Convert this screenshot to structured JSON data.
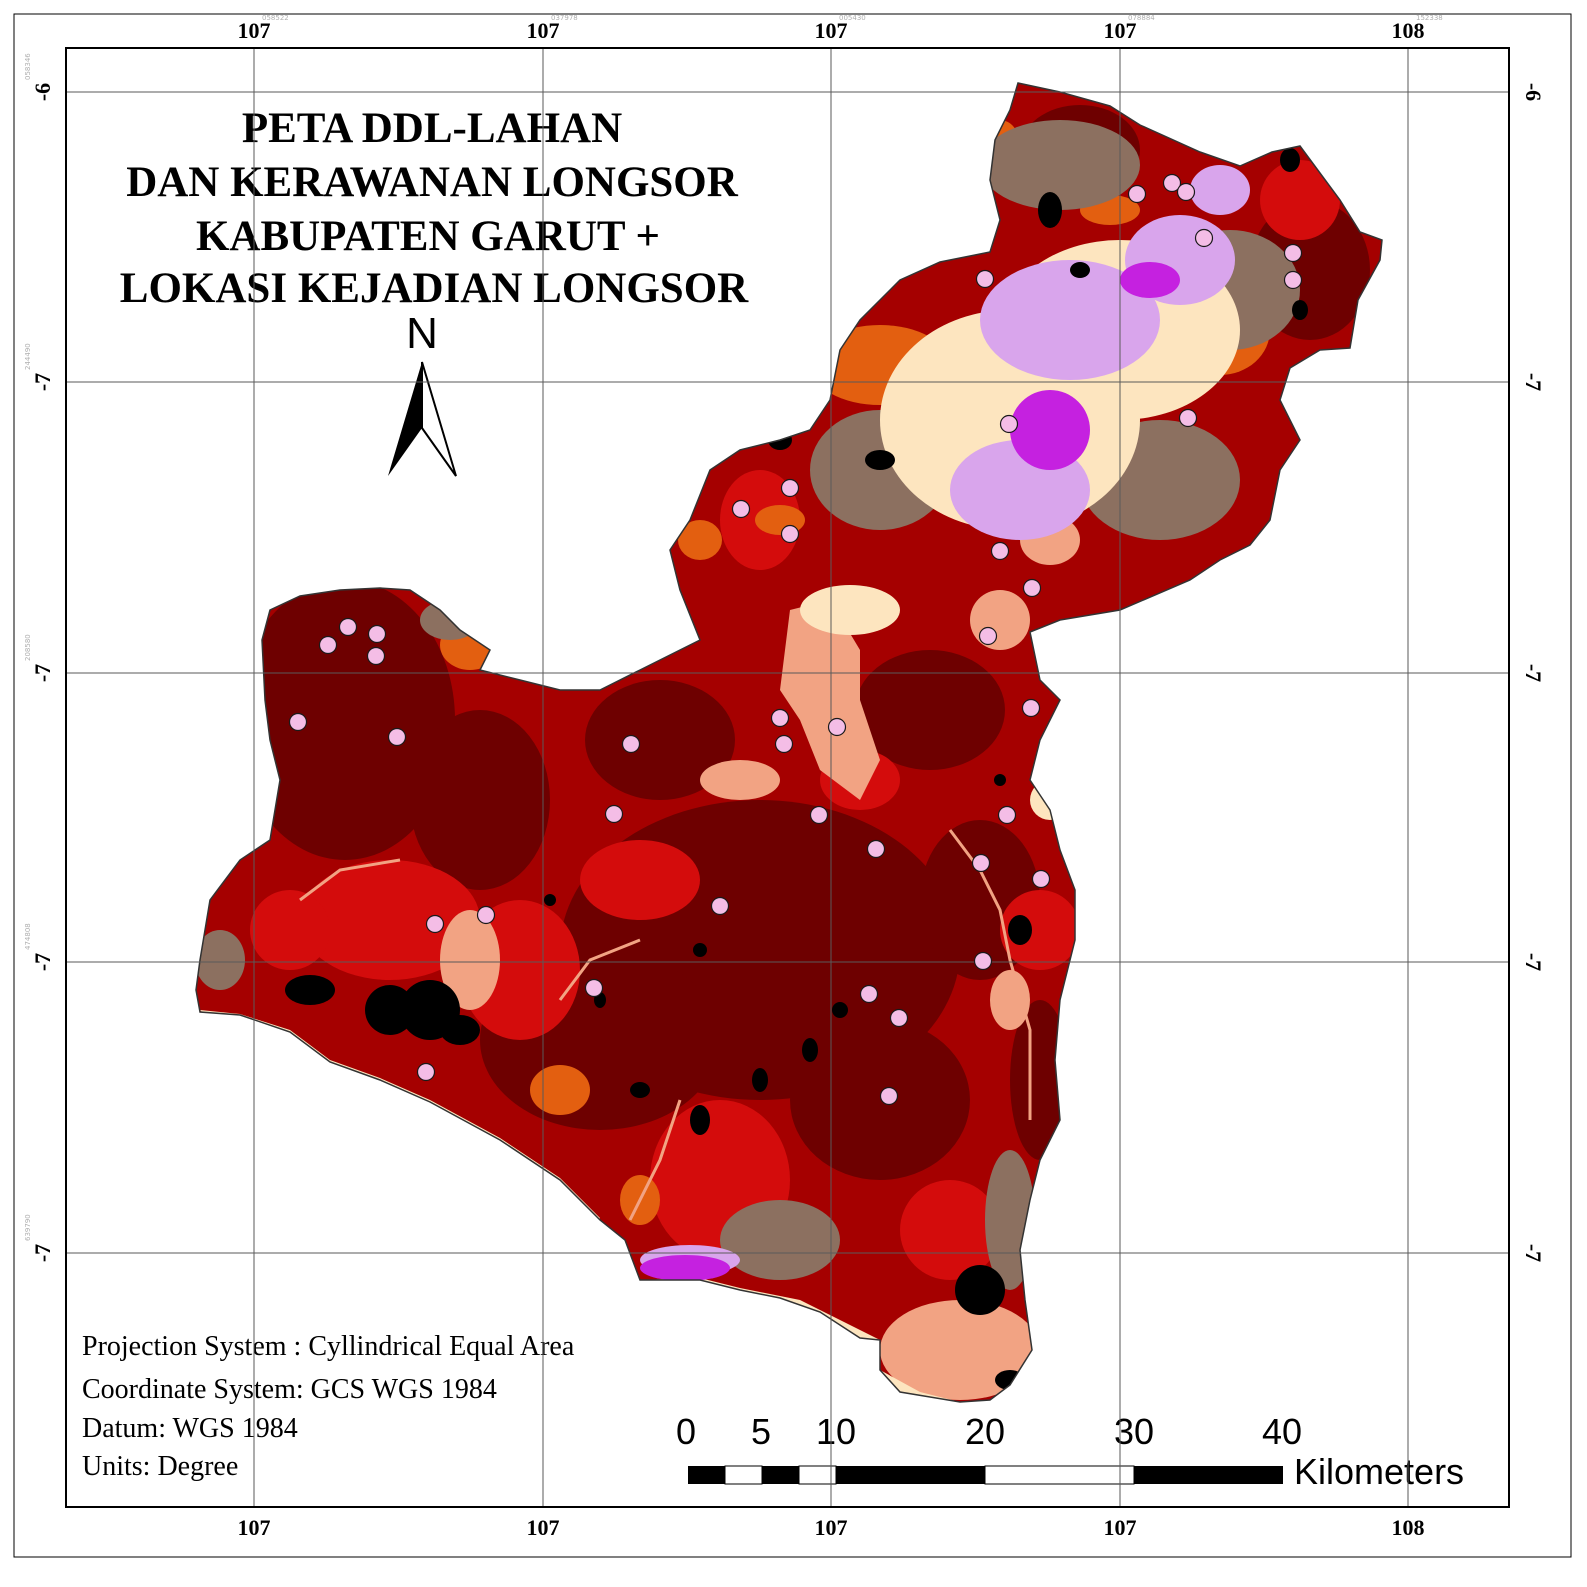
{
  "title": {
    "lines": [
      "PETA DDL-LAHAN",
      "DAN KERAWANAN LONGSOR",
      "KABUPATEN GARUT +",
      "LOKASI KEJADIAN LONGSOR"
    ]
  },
  "north_arrow": {
    "letter": "N"
  },
  "graticule": {
    "top_labels": [
      "107",
      "107",
      "107",
      "107",
      "108"
    ],
    "bottom_labels": [
      "107",
      "107",
      "107",
      "107",
      "108"
    ],
    "left_labels": [
      "-6",
      "-7",
      "-7",
      "-7",
      "-7"
    ],
    "right_labels": [
      "-6",
      "-7",
      "-7",
      "-7",
      "-7"
    ],
    "minor_top": [
      "058522",
      "037978",
      "005430",
      "078884",
      "152338"
    ],
    "minor_side": [
      "058346",
      "244490",
      "208580",
      "474808",
      "639790"
    ]
  },
  "map_info": {
    "projection": "Projection System : Cyllindrical Equal Area",
    "coordinate": "Coordinate System: GCS WGS 1984",
    "datum": "Datum: WGS 1984",
    "units": "Units: Degree"
  },
  "scale_bar": {
    "labels": [
      "0",
      "5",
      "10",
      "20",
      "30",
      "40"
    ],
    "unit": "Kilometers"
  },
  "legend_colors": {
    "very_high": "#6e0000",
    "high": "#a50000",
    "medium_high": "#d40c0c",
    "orange": "#e35f10",
    "brown_grey": "#8c7060",
    "salmon": "#f2a383",
    "cream": "#fde5bf",
    "lilac": "#d9a5ec",
    "magenta": "#c521e0",
    "black": "#000000",
    "landslide_marker": "#f4bde6"
  },
  "landslide_points_count": 44
}
